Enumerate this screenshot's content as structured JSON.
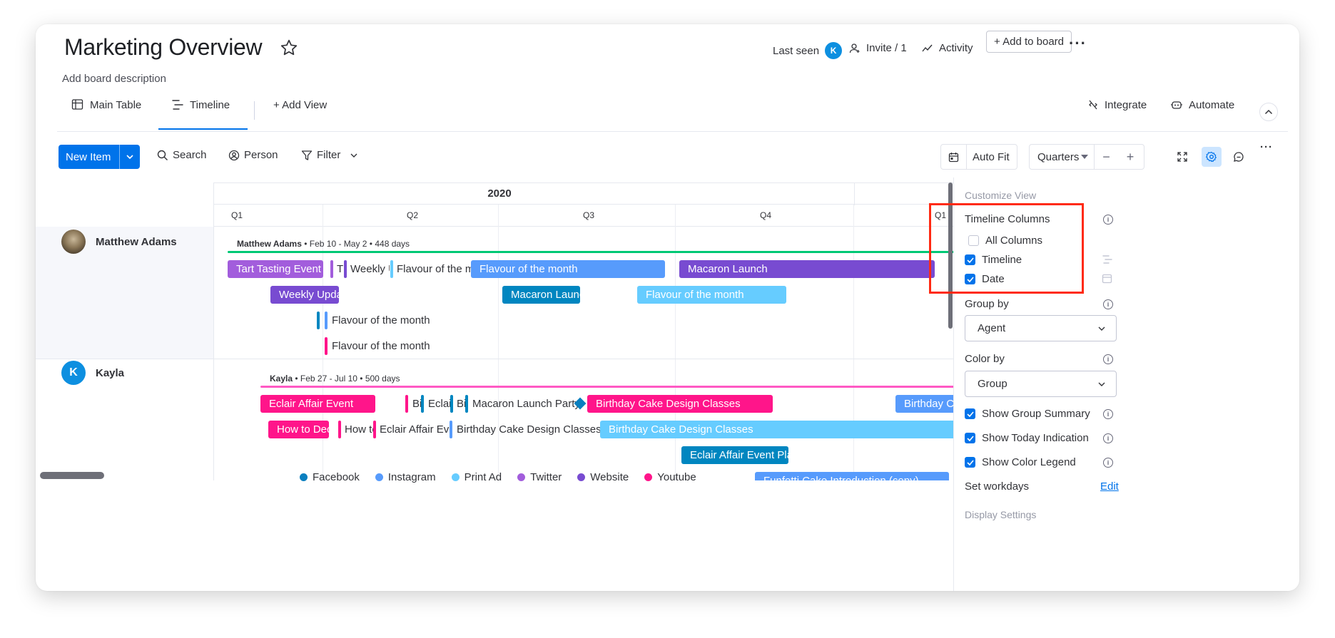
{
  "header": {
    "title": "Marketing Overview",
    "description": "Add board description",
    "last_seen_label": "Last seen",
    "last_seen_avatar": "K",
    "invite_label": "Invite / 1",
    "activity_label": "Activity",
    "add_to_board_label": "+ Add to board"
  },
  "tabs": [
    {
      "label": "Main Table",
      "icon": "table-icon"
    },
    {
      "label": "Timeline",
      "icon": "timeline-icon",
      "active": true
    },
    {
      "label": "+ Add View"
    }
  ],
  "tab_actions": {
    "integrate_label": "Integrate",
    "automate_label": "Automate"
  },
  "toolbar": {
    "new_item_label": "New Item",
    "search_label": "Search",
    "person_label": "Person",
    "filter_label": "Filter",
    "auto_fit_label": "Auto Fit",
    "zoom_select": "Quarters",
    "minus": "−",
    "plus": "+"
  },
  "timeline": {
    "year": "2020",
    "quarters": [
      "Q1",
      "Q2",
      "Q3",
      "Q4",
      "Q1"
    ],
    "groups": [
      {
        "person": "Matthew Adams",
        "summary_name": "Matthew Adams",
        "summary_rest": " • Feb 10 - May 2 • 448 days",
        "line_color": "#00c875",
        "rows": [
          [
            {
              "type": "bar",
              "label": "Tart Tasting Event",
              "color": "#a25ddc"
            },
            {
              "type": "tick",
              "color": "#a25ddc"
            },
            {
              "type": "text",
              "label": "Tı"
            },
            {
              "type": "tick",
              "color": "#784bd1"
            },
            {
              "type": "text",
              "label": "Weekly Up"
            },
            {
              "type": "tick",
              "color": "#66ccff"
            },
            {
              "type": "text",
              "label": "Flavour of the mon"
            },
            {
              "type": "bar",
              "label": "Flavour of the month",
              "color": "#579bfc"
            },
            {
              "type": "bar",
              "label": "Macaron Launch",
              "color": "#784bd1"
            }
          ],
          [
            {
              "type": "bar",
              "label": "Weekly Update",
              "color": "#784bd1"
            },
            {
              "type": "bar",
              "label": "Macaron Launch",
              "color": "#0086c0"
            },
            {
              "type": "bar",
              "label": "Flavour of the month",
              "color": "#66ccff"
            }
          ],
          [
            {
              "type": "tick",
              "color": "#0086c0"
            },
            {
              "type": "tick",
              "color": "#579bfc"
            },
            {
              "type": "text",
              "label": "Flavour of the month"
            }
          ],
          [
            {
              "type": "tick",
              "color": "#ff158a"
            },
            {
              "type": "text",
              "label": "Flavour of the month"
            }
          ]
        ]
      },
      {
        "person": "Kayla",
        "avatar": "K",
        "summary_name": "Kayla",
        "summary_rest": " • Feb 27 - Jul 10 • 500 days",
        "line_color": "#ff5ac4",
        "rows": [
          [
            {
              "type": "bar",
              "label": "Eclair Affair Event",
              "color": "#ff158a"
            },
            {
              "type": "tick",
              "color": "#ff158a"
            },
            {
              "type": "text",
              "label": "Bi"
            },
            {
              "type": "tick",
              "color": "#0086c0"
            },
            {
              "type": "text",
              "label": "Eclair"
            },
            {
              "type": "tick",
              "color": "#0086c0"
            },
            {
              "type": "text",
              "label": "Bi"
            },
            {
              "type": "tick",
              "color": "#0086c0"
            },
            {
              "type": "text",
              "label": "Macaron Launch Party"
            },
            {
              "type": "diamond",
              "color": "#0a7fbf"
            },
            {
              "type": "bar",
              "label": "Birthday Cake Design Classes",
              "color": "#ff158a"
            },
            {
              "type": "bar",
              "label": "Birthday Cal",
              "color": "#579bfc"
            }
          ],
          [
            {
              "type": "bar",
              "label": "How to Deco",
              "color": "#ff158a"
            },
            {
              "type": "tick",
              "color": "#ff158a"
            },
            {
              "type": "text",
              "label": "How to"
            },
            {
              "type": "tick",
              "color": "#ff158a"
            },
            {
              "type": "text",
              "label": "Eclair Affair Even"
            },
            {
              "type": "tick",
              "color": "#579bfc"
            },
            {
              "type": "text",
              "label": "Birthday Cake Design Classes (copy"
            },
            {
              "type": "bar",
              "label": "Birthday Cake Design Classes",
              "color": "#66ccff"
            }
          ],
          [
            {
              "type": "bar",
              "label": "Eclair Affair Event Plann",
              "color": "#0086c0"
            }
          ],
          [
            {
              "type": "bar",
              "label": "Funfetti Cake Introduction (copy)",
              "color": "#579bfc"
            }
          ]
        ]
      }
    ]
  },
  "legend": [
    {
      "label": "Facebook",
      "color": "#0a7fbf"
    },
    {
      "label": "Instagram",
      "color": "#579bfc"
    },
    {
      "label": "Print Ad",
      "color": "#66ccff"
    },
    {
      "label": "Twitter",
      "color": "#a25ddc"
    },
    {
      "label": "Website",
      "color": "#784bd1"
    },
    {
      "label": "Youtube",
      "color": "#ff158a"
    }
  ],
  "panel": {
    "title": "Customize View",
    "timeline_columns_label": "Timeline Columns",
    "all_columns_label": "All Columns",
    "all_columns_checked": false,
    "timeline_label": "Timeline",
    "timeline_checked": true,
    "date_label": "Date",
    "date_checked": true,
    "group_by_label": "Group by",
    "group_by_value": "Agent",
    "color_by_label": "Color by",
    "color_by_value": "Group",
    "show_group_summary_label": "Show Group Summary",
    "show_today_label": "Show Today Indication",
    "show_legend_label": "Show Color Legend",
    "set_workdays_label": "Set workdays",
    "edit_label": "Edit",
    "display_settings_label": "Display Settings"
  },
  "colors": {
    "accent": "#0073ea",
    "highlight": "#ff2a13"
  }
}
